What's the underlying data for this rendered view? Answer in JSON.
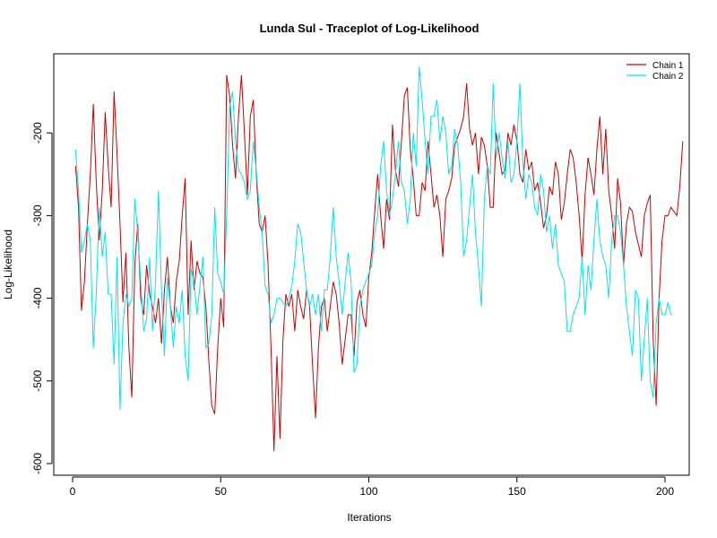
{
  "chart_data": {
    "type": "line",
    "title": "Lunda Sul - Traceplot of Log-Likelihood",
    "xlabel": "Iterations",
    "ylabel": "Log-Likelihood",
    "xlim": [
      1,
      200
    ],
    "ylim": [
      -610,
      -110
    ],
    "xticks": [
      0,
      50,
      100,
      150,
      200
    ],
    "yticks": [
      -600,
      -500,
      -400,
      -300,
      -200
    ],
    "legend_position": "top-right",
    "series": [
      {
        "name": "Chain 1",
        "color": "#CC0000",
        "values": [
          -240,
          -290,
          -415,
          -380,
          -310,
          -250,
          -165,
          -260,
          -330,
          -270,
          -175,
          -240,
          -290,
          -150,
          -225,
          -310,
          -405,
          -345,
          -460,
          -520,
          -360,
          -310,
          -400,
          -420,
          -360,
          -395,
          -410,
          -430,
          -400,
          -455,
          -390,
          -350,
          -410,
          -430,
          -380,
          -355,
          -300,
          -255,
          -420,
          -330,
          -390,
          -355,
          -370,
          -375,
          -410,
          -475,
          -530,
          -540,
          -460,
          -400,
          -435,
          -130,
          -155,
          -215,
          -255,
          -180,
          -130,
          -200,
          -275,
          -180,
          -160,
          -250,
          -310,
          -320,
          -300,
          -360,
          -460,
          -585,
          -470,
          -570,
          -450,
          -395,
          -410,
          -395,
          -440,
          -390,
          -410,
          -425,
          -390,
          -410,
          -480,
          -545,
          -460,
          -410,
          -400,
          -440,
          -410,
          -380,
          -395,
          -430,
          -480,
          -450,
          -420,
          -420,
          -470,
          -405,
          -390,
          -420,
          -435,
          -375,
          -345,
          -295,
          -250,
          -300,
          -340,
          -280,
          -305,
          -190,
          -245,
          -265,
          -210,
          -155,
          -145,
          -220,
          -255,
          -300,
          -300,
          -260,
          -270,
          -210,
          -250,
          -290,
          -275,
          -300,
          -350,
          -280,
          -270,
          -255,
          -215,
          -205,
          -195,
          -180,
          -140,
          -195,
          -215,
          -200,
          -250,
          -205,
          -215,
          -240,
          -290,
          -290,
          -200,
          -225,
          -250,
          -245,
          -200,
          -215,
          -190,
          -210,
          -250,
          -260,
          -220,
          -245,
          -235,
          -270,
          -260,
          -285,
          -315,
          -300,
          -265,
          -275,
          -235,
          -250,
          -305,
          -285,
          -250,
          -220,
          -230,
          -260,
          -300,
          -355,
          -275,
          -230,
          -250,
          -275,
          -220,
          -180,
          -250,
          -195,
          -270,
          -300,
          -340,
          -255,
          -285,
          -360,
          -310,
          -290,
          -295,
          -320,
          -335,
          -350,
          -300,
          -285,
          -275,
          -450,
          -530,
          -400,
          -330,
          -300,
          -300,
          -290,
          -295,
          -300,
          -265,
          -210
        ]
      },
      {
        "name": "Chain 2",
        "color": "#00E5EE",
        "values": [
          -220,
          -270,
          -345,
          -330,
          -310,
          -330,
          -460,
          -395,
          -290,
          -350,
          -320,
          -395,
          -395,
          -480,
          -350,
          -535,
          -430,
          -395,
          -410,
          -400,
          -280,
          -320,
          -380,
          -440,
          -425,
          -350,
          -440,
          -380,
          -270,
          -390,
          -470,
          -375,
          -410,
          -460,
          -410,
          -430,
          -390,
          -470,
          -500,
          -365,
          -380,
          -420,
          -385,
          -350,
          -460,
          -455,
          -420,
          -290,
          -370,
          -380,
          -395,
          -300,
          -170,
          -150,
          -210,
          -245,
          -250,
          -260,
          -280,
          -270,
          -210,
          -245,
          -290,
          -320,
          -385,
          -395,
          -430,
          -420,
          -400,
          -400,
          -405,
          -410,
          -400,
          -385,
          -355,
          -310,
          -320,
          -355,
          -390,
          -410,
          -395,
          -420,
          -395,
          -440,
          -390,
          -390,
          -350,
          -290,
          -350,
          -380,
          -420,
          -380,
          -345,
          -380,
          -490,
          -480,
          -410,
          -390,
          -380,
          -370,
          -360,
          -320,
          -300,
          -240,
          -210,
          -270,
          -300,
          -280,
          -250,
          -210,
          -260,
          -270,
          -310,
          -280,
          -200,
          -240,
          -120,
          -160,
          -210,
          -250,
          -180,
          -180,
          -160,
          -210,
          -180,
          -200,
          -250,
          -240,
          -195,
          -215,
          -260,
          -350,
          -330,
          -290,
          -250,
          -320,
          -360,
          -410,
          -280,
          -240,
          -250,
          -140,
          -230,
          -200,
          -230,
          -255,
          -210,
          -260,
          -250,
          -210,
          -140,
          -235,
          -280,
          -250,
          -260,
          -290,
          -300,
          -250,
          -270,
          -320,
          -300,
          -340,
          -310,
          -360,
          -370,
          -380,
          -440,
          -440,
          -420,
          -410,
          -400,
          -350,
          -420,
          -360,
          -390,
          -330,
          -280,
          -330,
          -350,
          -360,
          -400,
          -330,
          -300,
          -300,
          -320,
          -360,
          -410,
          -440,
          -470,
          -390,
          -400,
          -500,
          -450,
          -400,
          -500,
          -520,
          -430,
          -400,
          -420,
          -420,
          -405,
          -420
        ]
      }
    ]
  }
}
